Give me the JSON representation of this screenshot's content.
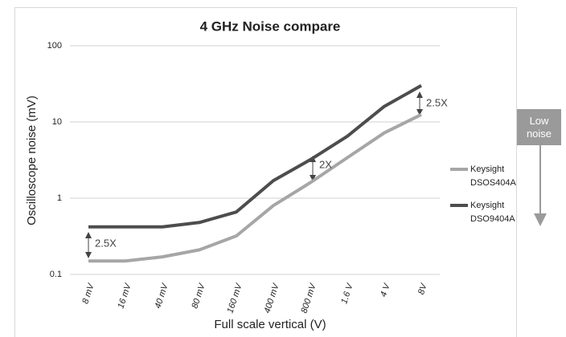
{
  "chart_data": {
    "type": "line",
    "title": "4 GHz Noise compare",
    "x_label": "Full scale vertical (V)",
    "y_label": "Oscilloscope noise (mV)",
    "categories": [
      "8 mV",
      "16 mV",
      "40 mV",
      "80 mV",
      "160 mV",
      "400 mV",
      "800 mV",
      "1.6 V",
      "4 V",
      "8V"
    ],
    "series": [
      {
        "name": "Keysight DSOS404A",
        "color": "#a6a6a6",
        "values": [
          0.15,
          0.15,
          0.17,
          0.21,
          0.32,
          0.8,
          1.6,
          3.4,
          7.2,
          12.5
        ]
      },
      {
        "name": "Keysight DSO9404A",
        "color": "#4d4d4d",
        "values": [
          0.42,
          0.42,
          0.42,
          0.48,
          0.66,
          1.7,
          3.2,
          6.5,
          16,
          30
        ]
      }
    ],
    "log_y": true,
    "ylim": [
      0.1,
      100
    ],
    "yticks": [
      0.1,
      1,
      10,
      100
    ],
    "grid": true,
    "legend": "right",
    "annotations": [
      "2.5X",
      "2X",
      "2.5X"
    ],
    "side_note": "Low noise"
  }
}
